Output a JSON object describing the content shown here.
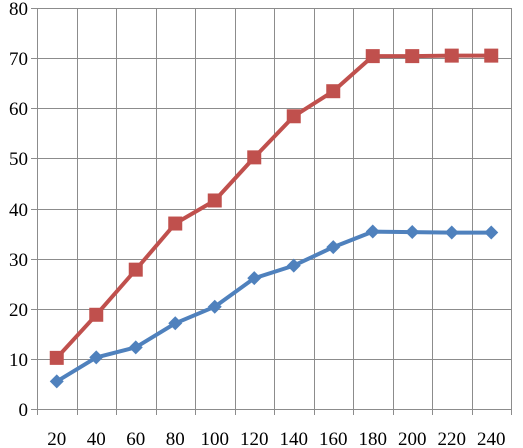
{
  "chart_data": {
    "type": "line",
    "x": [
      20,
      40,
      60,
      80,
      100,
      120,
      140,
      160,
      180,
      200,
      220,
      240
    ],
    "x_tick_labels": [
      "20",
      "40",
      "60",
      "80",
      "100",
      "120",
      "140",
      "160",
      "180",
      "200",
      "220",
      "240"
    ],
    "y_tick_labels": [
      "0",
      "10",
      "20",
      "30",
      "40",
      "50",
      "60",
      "70",
      "80"
    ],
    "ylim": [
      0,
      80
    ],
    "grid": true,
    "legend": "none",
    "series": [
      {
        "color": "#c0504d",
        "marker": "square",
        "values": [
          10.2,
          18.8,
          27.8,
          37.0,
          41.6,
          50.2,
          58.4,
          63.4,
          70.4,
          70.4,
          70.5,
          70.5
        ]
      },
      {
        "color": "#4f81bd",
        "marker": "diamond",
        "values": [
          5.5,
          10.3,
          12.3,
          17.1,
          20.4,
          26.1,
          28.6,
          32.3,
          35.4,
          35.3,
          35.2,
          35.2
        ]
      }
    ]
  }
}
